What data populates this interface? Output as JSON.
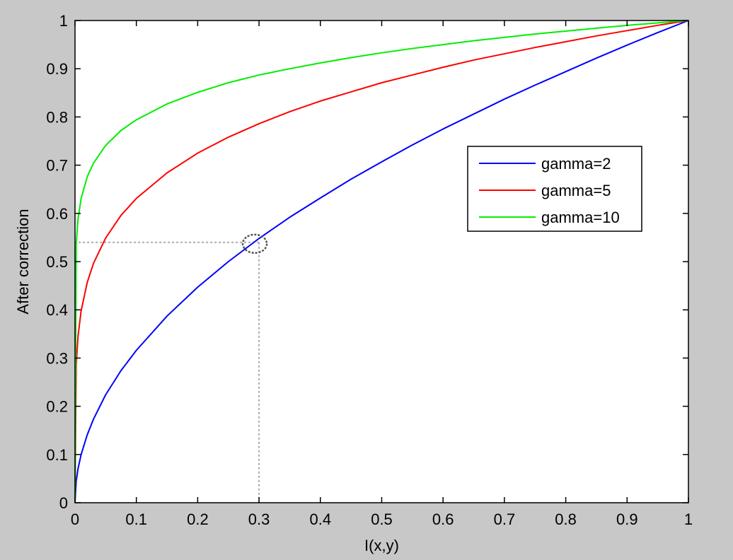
{
  "chart_data": {
    "type": "line",
    "title": "",
    "xlabel": "I(x,y)",
    "ylabel": "After correction",
    "xlim": [
      0,
      1
    ],
    "ylim": [
      0,
      1
    ],
    "xticks": [
      0,
      0.1,
      0.2,
      0.3,
      0.4,
      0.5,
      0.6,
      0.7,
      0.8,
      0.9,
      1
    ],
    "yticks": [
      0,
      0.1,
      0.2,
      0.3,
      0.4,
      0.5,
      0.6,
      0.7,
      0.8,
      0.9,
      1
    ],
    "xtick_labels": [
      "0",
      "0.1",
      "0.2",
      "0.3",
      "0.4",
      "0.5",
      "0.6",
      "0.7",
      "0.8",
      "0.9",
      "1"
    ],
    "ytick_labels": [
      "0",
      "0.1",
      "0.2",
      "0.3",
      "0.4",
      "0.5",
      "0.6",
      "0.7",
      "0.8",
      "0.9",
      "1"
    ],
    "grid": false,
    "legend_position": "upper-right",
    "x": [
      0,
      0.002,
      0.005,
      0.01,
      0.02,
      0.03,
      0.05,
      0.075,
      0.1,
      0.15,
      0.2,
      0.25,
      0.3,
      0.35,
      0.4,
      0.45,
      0.5,
      0.55,
      0.6,
      0.65,
      0.7,
      0.75,
      0.8,
      0.85,
      0.9,
      0.95,
      1.0
    ],
    "series": [
      {
        "name": "gamma=2",
        "color": "#0000ff",
        "values": [
          0,
          0.045,
          0.071,
          0.1,
          0.141,
          0.173,
          0.224,
          0.274,
          0.316,
          0.387,
          0.447,
          0.5,
          0.548,
          0.592,
          0.632,
          0.671,
          0.707,
          0.742,
          0.775,
          0.806,
          0.837,
          0.866,
          0.894,
          0.922,
          0.949,
          0.975,
          1.0
        ]
      },
      {
        "name": "gamma=5",
        "color": "#ff0000",
        "values": [
          0,
          0.288,
          0.346,
          0.398,
          0.457,
          0.496,
          0.549,
          0.596,
          0.631,
          0.684,
          0.725,
          0.758,
          0.786,
          0.811,
          0.833,
          0.852,
          0.871,
          0.887,
          0.903,
          0.918,
          0.931,
          0.944,
          0.956,
          0.968,
          0.979,
          0.99,
          1.0
        ]
      },
      {
        "name": "gamma=10",
        "color": "#00ee00",
        "values": [
          0,
          0.537,
          0.589,
          0.631,
          0.676,
          0.704,
          0.741,
          0.772,
          0.794,
          0.827,
          0.851,
          0.871,
          0.887,
          0.9,
          0.912,
          0.923,
          0.933,
          0.942,
          0.95,
          0.958,
          0.965,
          0.972,
          0.978,
          0.984,
          0.99,
          0.995,
          1.0
        ]
      }
    ],
    "annotations": {
      "reference_point": {
        "x": 0.3,
        "y": 0.54
      }
    }
  }
}
